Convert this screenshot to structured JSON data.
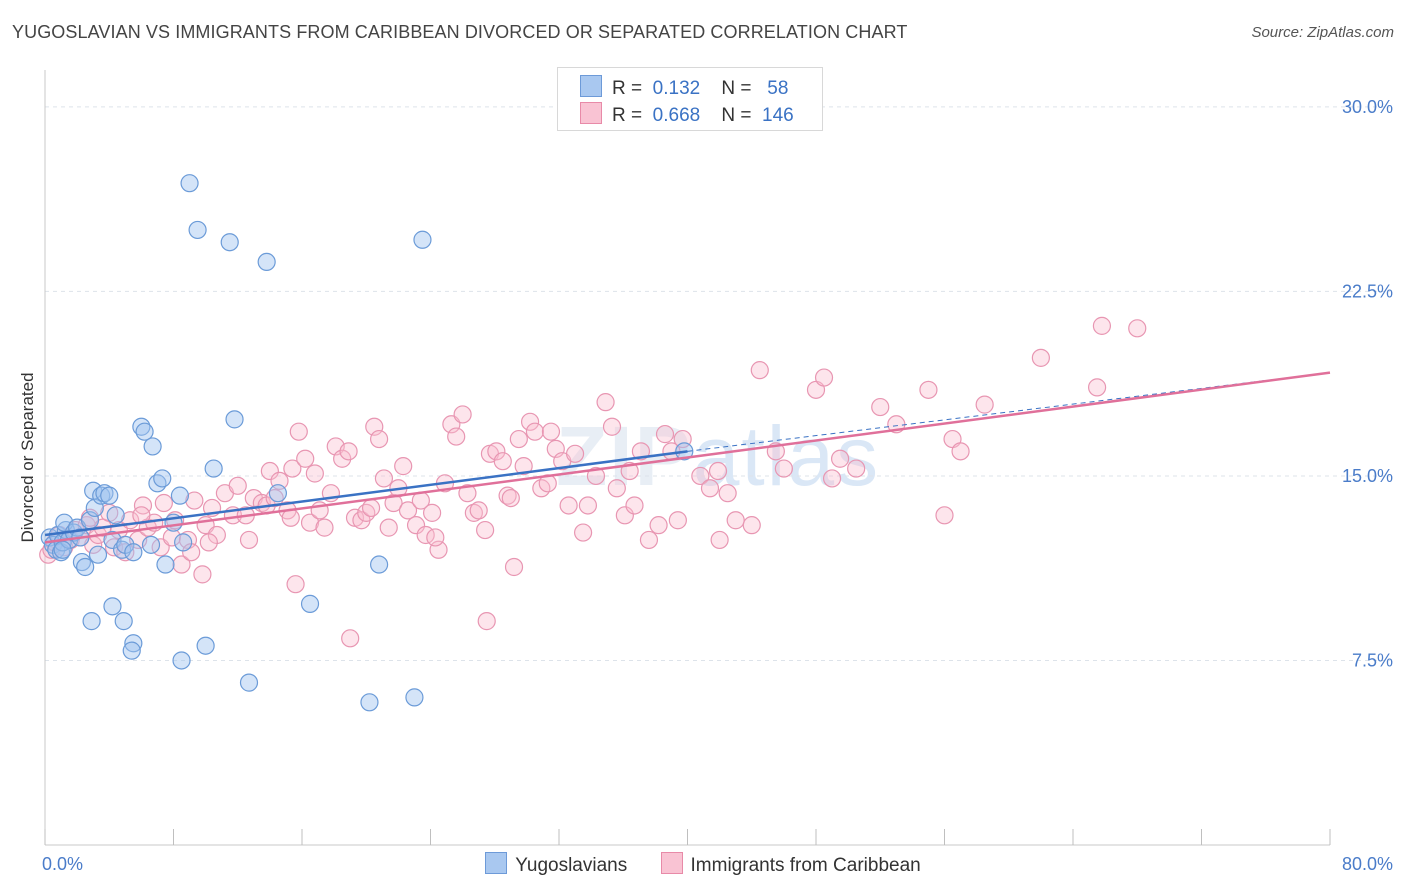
{
  "title": "YUGOSLAVIAN VS IMMIGRANTS FROM CARIBBEAN DIVORCED OR SEPARATED CORRELATION CHART",
  "source": "Source: ZipAtlas.com",
  "watermark": {
    "zip": "ZIP",
    "atlas": "atlas"
  },
  "legend": {
    "rows": [
      {
        "r_label": "R =",
        "r_value": "0.132",
        "n_label": "N =",
        "n_value": "58",
        "color": "#a9c8f0",
        "border": "#6d9ad8"
      },
      {
        "r_label": "R =",
        "r_value": "0.668",
        "n_label": "N =",
        "n_value": "146",
        "color": "#f9c3d3",
        "border": "#e88aa8"
      }
    ]
  },
  "colors": {
    "blue_fill": "rgba(160,195,240,0.45)",
    "blue_stroke": "#6b9bd8",
    "blue_line": "#3a72c4",
    "pink_fill": "rgba(249,190,208,0.40)",
    "pink_stroke": "#e896b2",
    "pink_line": "#e0709a",
    "grid": "#dde3ea",
    "tick": "#4a7cc9"
  },
  "chart_data": {
    "type": "scatter",
    "title": "YUGOSLAVIAN VS IMMIGRANTS FROM CARIBBEAN DIVORCED OR SEPARATED CORRELATION CHART",
    "xlabel": "",
    "ylabel": "Divorced or Separated",
    "xlim": [
      0,
      80
    ],
    "ylim": [
      0,
      31.5
    ],
    "x_tick_labels": [
      "0.0%",
      "80.0%"
    ],
    "y_ticks": [
      7.5,
      15.0,
      22.5,
      30.0
    ],
    "y_tick_labels": [
      "7.5%",
      "15.0%",
      "22.5%",
      "30.0%"
    ],
    "grid": true,
    "legend_position": "bottom",
    "series": [
      {
        "name": "Yugoslavians",
        "r": 0.132,
        "n": 58,
        "trend": {
          "x": [
            0,
            40
          ],
          "y": [
            12.6,
            16.0
          ],
          "dashed_extension_to": [
            80,
            19.2
          ]
        },
        "points": [
          [
            0.3,
            12.5
          ],
          [
            0.5,
            12.2
          ],
          [
            0.7,
            12.0
          ],
          [
            0.8,
            12.6
          ],
          [
            1.0,
            11.9
          ],
          [
            1.1,
            12.3
          ],
          [
            1.3,
            12.8
          ],
          [
            1.2,
            13.1
          ],
          [
            1.5,
            12.4
          ],
          [
            1.8,
            12.7
          ],
          [
            2.0,
            12.9
          ],
          [
            2.2,
            12.5
          ],
          [
            2.3,
            11.5
          ],
          [
            2.5,
            11.3
          ],
          [
            2.8,
            13.2
          ],
          [
            3.0,
            14.4
          ],
          [
            3.1,
            13.7
          ],
          [
            3.5,
            14.2
          ],
          [
            3.3,
            11.8
          ],
          [
            3.7,
            14.3
          ],
          [
            4.0,
            14.2
          ],
          [
            4.2,
            12.4
          ],
          [
            4.4,
            13.4
          ],
          [
            4.8,
            12.0
          ],
          [
            5.0,
            12.2
          ],
          [
            5.5,
            11.9
          ],
          [
            6.0,
            17.0
          ],
          [
            6.2,
            16.8
          ],
          [
            6.7,
            16.2
          ],
          [
            6.6,
            12.2
          ],
          [
            7.0,
            14.7
          ],
          [
            7.3,
            14.9
          ],
          [
            7.5,
            11.4
          ],
          [
            8.0,
            13.1
          ],
          [
            8.4,
            14.2
          ],
          [
            8.6,
            12.3
          ],
          [
            9.0,
            26.9
          ],
          [
            9.5,
            25.0
          ],
          [
            11.5,
            24.5
          ],
          [
            13.8,
            23.7
          ],
          [
            11.8,
            17.3
          ],
          [
            10.5,
            15.3
          ],
          [
            14.5,
            14.3
          ],
          [
            16.5,
            9.8
          ],
          [
            10.0,
            8.1
          ],
          [
            8.5,
            7.5
          ],
          [
            12.7,
            6.6
          ],
          [
            20.2,
            5.8
          ],
          [
            23.0,
            6.0
          ],
          [
            20.8,
            11.4
          ],
          [
            23.5,
            24.6
          ],
          [
            39.8,
            16.0
          ],
          [
            2.9,
            9.1
          ],
          [
            4.2,
            9.7
          ],
          [
            4.9,
            9.1
          ],
          [
            5.5,
            8.2
          ],
          [
            5.4,
            7.9
          ],
          [
            1.1,
            12.0
          ]
        ]
      },
      {
        "name": "Immigrants from Caribbean",
        "r": 0.668,
        "n": 146,
        "trend": {
          "x": [
            0,
            80
          ],
          "y": [
            12.3,
            19.2
          ]
        },
        "points": [
          [
            0.2,
            11.8
          ],
          [
            0.4,
            12.0
          ],
          [
            0.6,
            12.3
          ],
          [
            0.9,
            12.6
          ],
          [
            1.2,
            12.1
          ],
          [
            1.6,
            12.4
          ],
          [
            1.9,
            12.8
          ],
          [
            2.2,
            12.5
          ],
          [
            2.6,
            13.0
          ],
          [
            2.8,
            13.3
          ],
          [
            3.0,
            12.2
          ],
          [
            3.3,
            12.6
          ],
          [
            3.6,
            12.9
          ],
          [
            4.0,
            13.5
          ],
          [
            4.3,
            12.1
          ],
          [
            4.6,
            12.8
          ],
          [
            5.0,
            11.9
          ],
          [
            5.3,
            13.2
          ],
          [
            5.8,
            12.4
          ],
          [
            6.1,
            13.8
          ],
          [
            6.4,
            12.9
          ],
          [
            6.8,
            13.1
          ],
          [
            7.2,
            12.1
          ],
          [
            7.4,
            13.9
          ],
          [
            7.9,
            12.5
          ],
          [
            8.1,
            13.2
          ],
          [
            8.5,
            11.4
          ],
          [
            8.9,
            12.4
          ],
          [
            9.3,
            14.0
          ],
          [
            9.8,
            11.0
          ],
          [
            10.0,
            13.0
          ],
          [
            10.4,
            13.7
          ],
          [
            10.7,
            12.6
          ],
          [
            11.2,
            14.3
          ],
          [
            11.7,
            13.4
          ],
          [
            12.0,
            14.6
          ],
          [
            12.5,
            13.4
          ],
          [
            12.7,
            12.4
          ],
          [
            13.0,
            14.1
          ],
          [
            13.5,
            13.9
          ],
          [
            13.8,
            13.8
          ],
          [
            14.0,
            15.2
          ],
          [
            14.3,
            14.1
          ],
          [
            14.6,
            14.8
          ],
          [
            15.1,
            13.6
          ],
          [
            15.4,
            15.3
          ],
          [
            15.6,
            10.6
          ],
          [
            15.8,
            16.8
          ],
          [
            16.2,
            15.7
          ],
          [
            16.5,
            13.1
          ],
          [
            16.8,
            15.1
          ],
          [
            17.1,
            13.6
          ],
          [
            17.4,
            12.9
          ],
          [
            17.8,
            14.3
          ],
          [
            18.1,
            16.2
          ],
          [
            18.5,
            15.7
          ],
          [
            18.9,
            16.0
          ],
          [
            19.3,
            13.3
          ],
          [
            19.7,
            13.2
          ],
          [
            20.0,
            13.5
          ],
          [
            20.5,
            17.0
          ],
          [
            20.8,
            16.5
          ],
          [
            21.1,
            14.9
          ],
          [
            21.4,
            12.9
          ],
          [
            21.7,
            13.9
          ],
          [
            22.0,
            14.5
          ],
          [
            22.3,
            15.4
          ],
          [
            22.6,
            13.6
          ],
          [
            23.1,
            13.0
          ],
          [
            23.4,
            14.0
          ],
          [
            23.7,
            12.6
          ],
          [
            24.1,
            13.5
          ],
          [
            24.5,
            12.0
          ],
          [
            24.9,
            14.7
          ],
          [
            25.3,
            17.1
          ],
          [
            25.6,
            16.6
          ],
          [
            26.0,
            17.5
          ],
          [
            26.3,
            14.3
          ],
          [
            26.7,
            13.5
          ],
          [
            27.0,
            13.6
          ],
          [
            27.4,
            12.8
          ],
          [
            27.7,
            15.9
          ],
          [
            28.1,
            16.0
          ],
          [
            28.5,
            15.6
          ],
          [
            28.8,
            14.2
          ],
          [
            29.2,
            11.3
          ],
          [
            29.5,
            16.5
          ],
          [
            29.8,
            15.4
          ],
          [
            30.2,
            17.2
          ],
          [
            30.5,
            16.8
          ],
          [
            30.9,
            14.5
          ],
          [
            31.3,
            14.7
          ],
          [
            31.8,
            16.1
          ],
          [
            32.2,
            15.6
          ],
          [
            32.6,
            13.8
          ],
          [
            33.0,
            15.9
          ],
          [
            33.5,
            12.7
          ],
          [
            33.8,
            13.8
          ],
          [
            34.3,
            15.0
          ],
          [
            34.9,
            18.0
          ],
          [
            35.3,
            17.0
          ],
          [
            35.6,
            14.5
          ],
          [
            36.1,
            13.4
          ],
          [
            36.4,
            15.2
          ],
          [
            36.7,
            13.8
          ],
          [
            37.1,
            16.0
          ],
          [
            37.6,
            12.4
          ],
          [
            38.2,
            13.0
          ],
          [
            38.6,
            16.7
          ],
          [
            39.0,
            16.0
          ],
          [
            39.4,
            13.2
          ],
          [
            39.7,
            16.5
          ],
          [
            40.8,
            15.0
          ],
          [
            41.4,
            14.5
          ],
          [
            41.9,
            15.2
          ],
          [
            42.5,
            14.3
          ],
          [
            44.5,
            19.3
          ],
          [
            45.5,
            16.0
          ],
          [
            46.0,
            15.3
          ],
          [
            48.0,
            18.5
          ],
          [
            48.5,
            19.0
          ],
          [
            49.0,
            14.9
          ],
          [
            49.5,
            15.7
          ],
          [
            50.5,
            15.3
          ],
          [
            52.0,
            17.8
          ],
          [
            53.0,
            17.1
          ],
          [
            55.0,
            18.5
          ],
          [
            56.5,
            16.5
          ],
          [
            57.0,
            16.0
          ],
          [
            58.5,
            17.9
          ],
          [
            62.0,
            19.8
          ],
          [
            65.5,
            18.6
          ],
          [
            65.8,
            21.1
          ],
          [
            68.0,
            21.0
          ],
          [
            56.0,
            13.4
          ],
          [
            44.0,
            13.0
          ],
          [
            43.0,
            13.2
          ],
          [
            42.0,
            12.4
          ],
          [
            29.0,
            14.1
          ],
          [
            27.5,
            9.1
          ],
          [
            19.0,
            8.4
          ],
          [
            24.3,
            12.5
          ],
          [
            31.5,
            16.8
          ],
          [
            20.3,
            13.7
          ],
          [
            15.3,
            13.3
          ],
          [
            10.2,
            12.3
          ],
          [
            6.0,
            13.4
          ],
          [
            9.1,
            11.9
          ]
        ]
      }
    ]
  }
}
